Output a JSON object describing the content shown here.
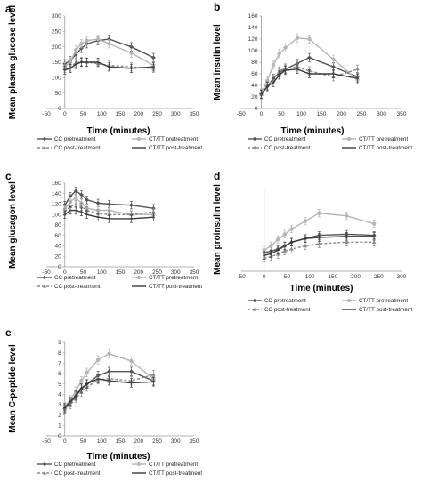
{
  "legend_labels": [
    "CC pretreatment",
    "CT/TT pretreatment",
    "CC post-treatment",
    "CT/TT post-treatment"
  ],
  "series_colors": [
    "#555555",
    "#b5b5b5",
    "#8a8a8a",
    "#3a3a3a"
  ],
  "chart_data": [
    {
      "type": "line",
      "letter": "a",
      "ylabel": "Mean plasma glucose level",
      "xlabel": "Time (minutes)",
      "xlim": [
        -50,
        350
      ],
      "xticks": [
        -50,
        0,
        50,
        100,
        150,
        200,
        250,
        300,
        350
      ],
      "ylim": [
        0,
        300
      ],
      "yticks": [
        0,
        50,
        100,
        150,
        200,
        250,
        300
      ],
      "x": [
        0,
        15,
        30,
        45,
        60,
        90,
        120,
        180,
        240
      ],
      "legend": "bottom",
      "series": [
        {
          "name": "CC pretreatment",
          "values": [
            145,
            155,
            175,
            195,
            210,
            220,
            225,
            200,
            165
          ]
        },
        {
          "name": "CT/TT pretreatment",
          "values": [
            135,
            150,
            190,
            210,
            220,
            225,
            210,
            180,
            140
          ]
        },
        {
          "name": "CC post-treatment",
          "values": [
            130,
            135,
            148,
            152,
            150,
            145,
            140,
            135,
            130
          ]
        },
        {
          "name": "CT/TT post-treatment",
          "values": [
            125,
            130,
            143,
            150,
            150,
            150,
            135,
            130,
            135
          ]
        }
      ]
    },
    {
      "type": "line",
      "letter": "b",
      "ylabel": "Mean insulin level",
      "xlabel": "Time (minutes)",
      "xlim": [
        -50,
        350
      ],
      "xticks": [
        -50,
        0,
        50,
        100,
        150,
        200,
        250,
        300,
        350
      ],
      "ylim": [
        0,
        160
      ],
      "yticks": [
        0,
        20,
        40,
        60,
        80,
        100,
        120,
        140,
        160
      ],
      "x": [
        0,
        15,
        30,
        45,
        60,
        90,
        120,
        180,
        240
      ],
      "legend": "bottom",
      "series": [
        {
          "name": "CC pretreatment",
          "values": [
            25,
            38,
            52,
            62,
            68,
            78,
            88,
            72,
            55
          ]
        },
        {
          "name": "CT/TT pretreatment",
          "values": [
            27,
            48,
            75,
            95,
            105,
            122,
            120,
            85,
            50
          ]
        },
        {
          "name": "CC post-treatment",
          "values": [
            24,
            40,
            50,
            65,
            70,
            72,
            65,
            55,
            68
          ]
        },
        {
          "name": "CT/TT post-treatment",
          "values": [
            25,
            38,
            45,
            58,
            66,
            68,
            60,
            60,
            52
          ]
        }
      ]
    },
    {
      "type": "line",
      "letter": "c",
      "ylabel": "Mean glucagon level",
      "xlabel": "",
      "xlim": [
        -50,
        350
      ],
      "xticks": [
        -50,
        0,
        50,
        100,
        150,
        200,
        250,
        300,
        350
      ],
      "ylim": [
        0,
        160
      ],
      "yticks": [
        0,
        20,
        40,
        60,
        80,
        100,
        120,
        140,
        160
      ],
      "x": [
        0,
        15,
        30,
        45,
        60,
        90,
        120,
        180,
        240
      ],
      "legend": "bottom",
      "series": [
        {
          "name": "CC pretreatment",
          "values": [
            118,
            135,
            145,
            138,
            128,
            122,
            120,
            118,
            112
          ]
        },
        {
          "name": "CT/TT pretreatment",
          "values": [
            110,
            125,
            132,
            122,
            112,
            108,
            108,
            100,
            100
          ]
        },
        {
          "name": "CC post-treatment",
          "values": [
            105,
            115,
            120,
            115,
            108,
            102,
            100,
            100,
            105
          ]
        },
        {
          "name": "CT/TT post-treatment",
          "values": [
            100,
            108,
            108,
            105,
            100,
            95,
            92,
            92,
            95
          ]
        }
      ]
    },
    {
      "type": "line",
      "letter": "d",
      "ylabel": "Mean proinsulin level",
      "xlabel": "Time (minutes)",
      "xlim": [
        -50,
        300
      ],
      "xticks": [
        -50,
        0,
        50,
        100,
        150,
        200,
        250,
        300
      ],
      "ylim": [
        0,
        160
      ],
      "yticks": [],
      "x": [
        0,
        15,
        30,
        45,
        60,
        90,
        120,
        180,
        240
      ],
      "legend": "bottom",
      "series": [
        {
          "name": "CC pretreatment",
          "values": [
            35,
            38,
            42,
            48,
            55,
            62,
            68,
            70,
            68
          ]
        },
        {
          "name": "CT/TT pretreatment",
          "values": [
            40,
            48,
            60,
            70,
            80,
            95,
            110,
            105,
            90
          ]
        },
        {
          "name": "CC post-treatment",
          "values": [
            25,
            28,
            32,
            38,
            42,
            48,
            52,
            55,
            55
          ]
        },
        {
          "name": "CT/TT post-treatment",
          "values": [
            30,
            33,
            40,
            48,
            55,
            62,
            64,
            66,
            66
          ]
        }
      ]
    },
    {
      "type": "line",
      "letter": "e",
      "ylabel": "Mean C-peptide level",
      "xlabel": "Time (minutes)",
      "xlim": [
        -50,
        350
      ],
      "xticks": [
        -50,
        0,
        50,
        100,
        150,
        200,
        250,
        300,
        350
      ],
      "ylim": [
        0,
        9
      ],
      "yticks": [
        0,
        1,
        2,
        3,
        4,
        5,
        6,
        7,
        8,
        9
      ],
      "x": [
        0,
        15,
        30,
        45,
        60,
        90,
        120,
        180,
        240
      ],
      "legend": "bottom",
      "series": [
        {
          "name": "CC pretreatment",
          "values": [
            2.6,
            3.2,
            3.8,
            4.5,
            5.0,
            5.8,
            6.2,
            6.2,
            5.3
          ]
        },
        {
          "name": "CT/TT pretreatment",
          "values": [
            2.8,
            3.5,
            4.3,
            5.3,
            6.1,
            7.3,
            7.9,
            7.2,
            5.5
          ]
        },
        {
          "name": "CC post-treatment",
          "values": [
            2.5,
            3.0,
            3.6,
            4.2,
            4.7,
            5.4,
            5.5,
            5.3,
            5.9
          ]
        },
        {
          "name": "CT/TT post-treatment",
          "values": [
            2.7,
            3.3,
            3.9,
            4.6,
            5.0,
            5.5,
            5.3,
            5.1,
            5.2
          ]
        }
      ]
    }
  ]
}
